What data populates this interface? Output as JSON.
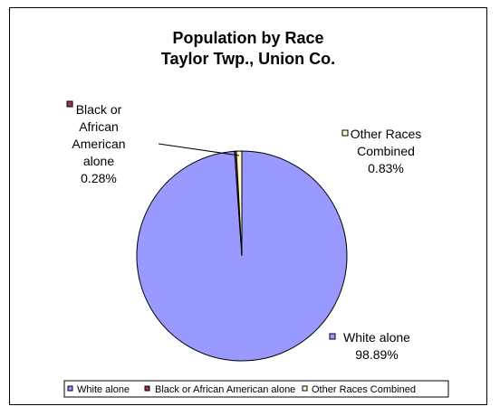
{
  "chart_data": {
    "type": "pie",
    "title": "Population by Race",
    "subtitle": "Taylor Twp., Union Co.",
    "categories": [
      "White alone",
      "Black or African American alone",
      "Other Races Combined"
    ],
    "values": [
      98.89,
      0.28,
      0.83
    ],
    "value_labels": [
      "98.89%",
      "0.28%",
      "0.83%"
    ],
    "colors": [
      "#9999ff",
      "#993366",
      "#ffffcc"
    ],
    "legend_placement": "bottom",
    "data_label_lines": {
      "white": [
        "White alone",
        "98.89%"
      ],
      "black": [
        "Black or",
        "African",
        "American",
        "alone",
        "0.28%"
      ],
      "other": [
        "Other Races",
        "Combined",
        "0.83%"
      ]
    }
  }
}
